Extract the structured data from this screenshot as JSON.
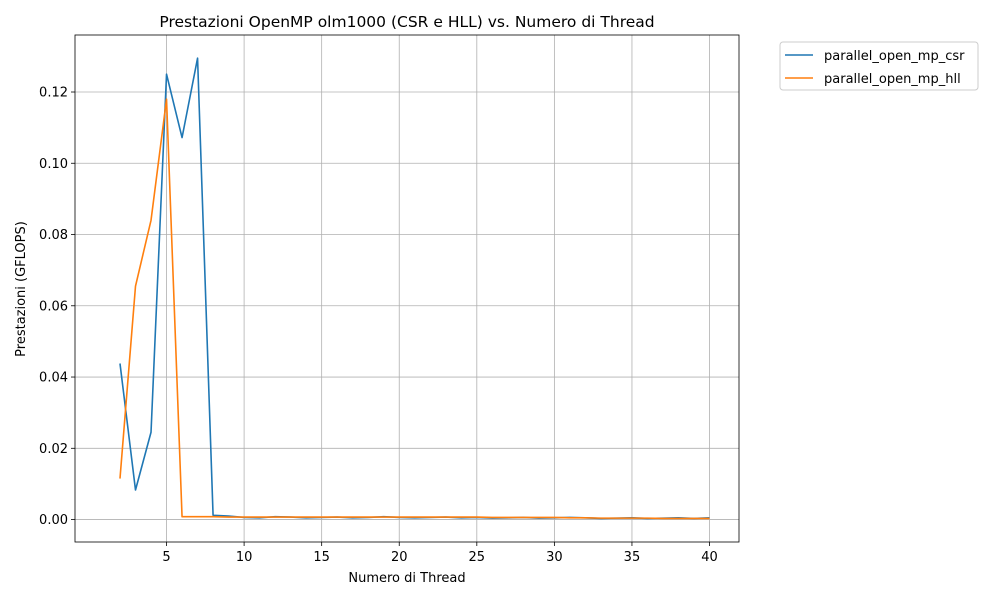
{
  "chart_data": {
    "type": "line",
    "title": "Prestazioni OpenMP olm1000 (CSR e HLL) vs. Numero di Thread",
    "xlabel": "Numero di Thread",
    "ylabel": "Prestazioni (GFLOPS)",
    "xlim": [
      -0.9,
      41.9
    ],
    "ylim": [
      -0.0063,
      0.136
    ],
    "xticks": [
      5,
      10,
      15,
      20,
      25,
      30,
      35,
      40
    ],
    "xtick_labels": [
      "5",
      "10",
      "15",
      "20",
      "25",
      "30",
      "35",
      "40"
    ],
    "yticks": [
      0.0,
      0.02,
      0.04,
      0.06,
      0.08,
      0.1,
      0.12
    ],
    "ytick_labels": [
      "0.00",
      "0.02",
      "0.04",
      "0.06",
      "0.08",
      "0.10",
      "0.12"
    ],
    "grid": true,
    "legend_position": "outside-top-right",
    "x": [
      2,
      3,
      4,
      5,
      6,
      7,
      8,
      9,
      10,
      11,
      12,
      13,
      14,
      15,
      16,
      17,
      18,
      19,
      20,
      21,
      22,
      23,
      24,
      25,
      26,
      27,
      28,
      29,
      30,
      31,
      32,
      33,
      34,
      35,
      36,
      37,
      38,
      39,
      40
    ],
    "series": [
      {
        "name": "parallel_open_mp_csr",
        "color": "#1f77b4",
        "values": [
          0.0438,
          0.0083,
          0.0245,
          0.125,
          0.1072,
          0.1295,
          0.0012,
          0.001,
          0.0006,
          0.0005,
          0.0008,
          0.0007,
          0.0005,
          0.0006,
          0.0007,
          0.0005,
          0.0006,
          0.0008,
          0.0006,
          0.0005,
          0.0006,
          0.0007,
          0.0005,
          0.0006,
          0.0004,
          0.0005,
          0.0006,
          0.0004,
          0.0005,
          0.0006,
          0.0005,
          0.0003,
          0.0004,
          0.0005,
          0.0003,
          0.0004,
          0.0005,
          0.0003,
          0.0005
        ]
      },
      {
        "name": "parallel_open_mp_hll",
        "color": "#ff7f0e",
        "values": [
          0.0115,
          0.0655,
          0.084,
          0.118,
          0.0008,
          0.0008,
          0.0008,
          0.0007,
          0.0007,
          0.0007,
          0.0007,
          0.0007,
          0.0007,
          0.0007,
          0.0007,
          0.0007,
          0.0007,
          0.0007,
          0.0007,
          0.0007,
          0.0007,
          0.0007,
          0.0007,
          0.0007,
          0.0006,
          0.0006,
          0.0006,
          0.0006,
          0.0006,
          0.0005,
          0.0005,
          0.0004,
          0.0004,
          0.0004,
          0.0004,
          0.0003,
          0.0003,
          0.0003,
          0.0003
        ]
      }
    ]
  }
}
